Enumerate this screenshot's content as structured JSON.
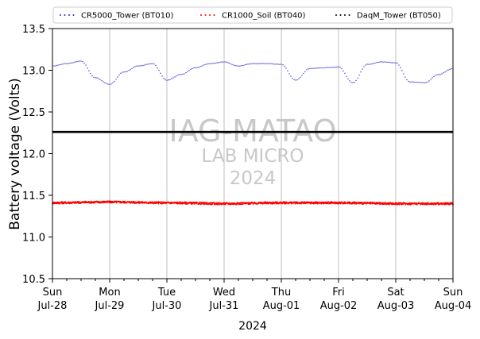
{
  "chart_data": {
    "type": "line",
    "title": "",
    "xlabel": "2024",
    "ylabel": "Battery voltage (Volts)",
    "ylim": [
      10.5,
      13.5
    ],
    "yticks": [
      "10.5",
      "11.0",
      "11.5",
      "12.0",
      "12.5",
      "13.0",
      "13.5"
    ],
    "xlim": [
      "2024-07-28",
      "2024-08-04"
    ],
    "xticks": [
      {
        "day": "Sun",
        "date": "Jul-28"
      },
      {
        "day": "Mon",
        "date": "Jul-29"
      },
      {
        "day": "Tue",
        "date": "Jul-30"
      },
      {
        "day": "Wed",
        "date": "Jul-31"
      },
      {
        "day": "Thu",
        "date": "Aug-01"
      },
      {
        "day": "Fri",
        "date": "Aug-02"
      },
      {
        "day": "Sat",
        "date": "Aug-03"
      },
      {
        "day": "Sun",
        "date": "Aug-04"
      }
    ],
    "grid": "vertical",
    "legend_placement": "top",
    "series": [
      {
        "name": "CR5000_Tower (BT010)",
        "color": "#2b2bd6",
        "x": [
          "2024-07-28 00:00",
          "2024-07-28 06:00",
          "2024-07-28 12:00",
          "2024-07-28 18:00",
          "2024-07-29 00:00",
          "2024-07-29 06:00",
          "2024-07-29 12:00",
          "2024-07-29 18:00",
          "2024-07-30 00:00",
          "2024-07-30 06:00",
          "2024-07-30 12:00",
          "2024-07-30 18:00",
          "2024-07-31 00:00",
          "2024-07-31 06:00",
          "2024-07-31 12:00",
          "2024-07-31 18:00",
          "2024-08-01 00:00",
          "2024-08-01 06:00",
          "2024-08-01 12:00",
          "2024-08-01 18:00",
          "2024-08-02 00:00",
          "2024-08-02 06:00",
          "2024-08-02 12:00",
          "2024-08-02 18:00",
          "2024-08-03 00:00",
          "2024-08-03 06:00",
          "2024-08-03 12:00",
          "2024-08-03 18:00",
          "2024-08-04 00:00"
        ],
        "values": [
          13.05,
          13.08,
          13.11,
          12.91,
          12.83,
          12.98,
          13.05,
          13.08,
          12.88,
          12.95,
          13.03,
          13.08,
          13.1,
          13.05,
          13.08,
          13.08,
          13.07,
          12.88,
          13.02,
          13.03,
          13.04,
          12.85,
          13.07,
          13.1,
          13.09,
          12.86,
          12.85,
          12.95,
          13.02
        ]
      },
      {
        "name": "CR1000_Soil (BT040)",
        "color": "#ff0000",
        "x": [
          "2024-07-28 00:00",
          "2024-07-29 00:00",
          "2024-07-30 00:00",
          "2024-07-31 00:00",
          "2024-08-01 00:00",
          "2024-08-02 00:00",
          "2024-08-03 00:00",
          "2024-08-04 00:00"
        ],
        "values": [
          11.41,
          11.42,
          11.41,
          11.4,
          11.41,
          11.41,
          11.4,
          11.4
        ]
      },
      {
        "name": "DaqM_Tower (BT050)",
        "color": "#000000",
        "x": [
          "2024-07-28 00:00",
          "2024-08-04 00:00"
        ],
        "values": [
          12.26,
          12.26
        ]
      }
    ],
    "watermark": [
      "IAG-MATAO",
      "LAB MICRO",
      "2024"
    ]
  }
}
